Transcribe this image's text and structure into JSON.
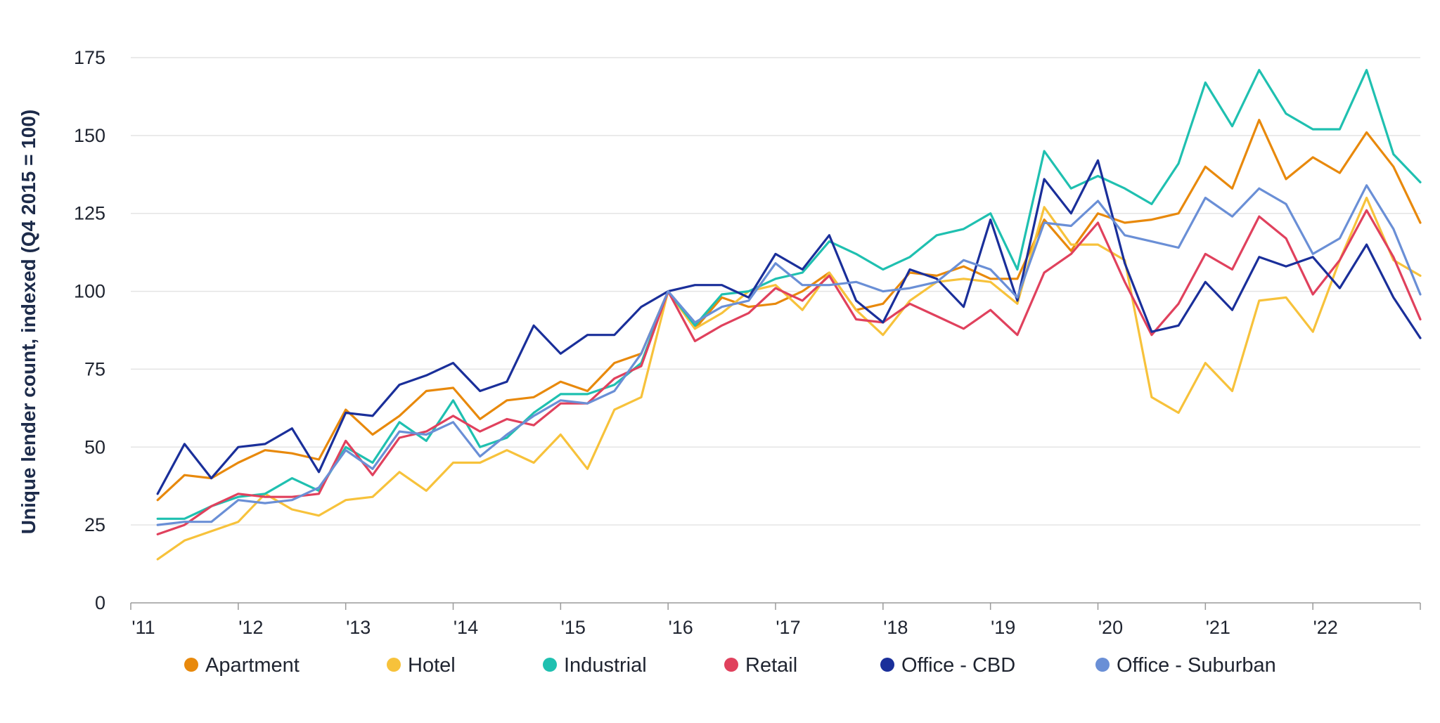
{
  "chart_data": {
    "type": "line",
    "title": "",
    "xlabel": "",
    "ylabel": "Unique lender count, indexed (Q4 2015 = 100)",
    "ylim": [
      0,
      175
    ],
    "yticks": [
      0,
      25,
      50,
      75,
      100,
      125,
      150,
      175
    ],
    "x_tick_labels": [
      "'11",
      "'12",
      "'13",
      "'14",
      "'15",
      "'16",
      "'17",
      "'18",
      "'19",
      "'20",
      "'21",
      "'22"
    ],
    "x_period_start": "Q1 2011",
    "x_period_end": "Q4 2022",
    "x": [
      "Q1 2011",
      "Q2 2011",
      "Q3 2011",
      "Q4 2011",
      "Q1 2012",
      "Q2 2012",
      "Q3 2012",
      "Q4 2012",
      "Q1 2013",
      "Q2 2013",
      "Q3 2013",
      "Q4 2013",
      "Q1 2014",
      "Q2 2014",
      "Q3 2014",
      "Q4 2014",
      "Q1 2015",
      "Q2 2015",
      "Q3 2015",
      "Q4 2015",
      "Q1 2016",
      "Q2 2016",
      "Q3 2016",
      "Q4 2016",
      "Q1 2017",
      "Q2 2017",
      "Q3 2017",
      "Q4 2017",
      "Q1 2018",
      "Q2 2018",
      "Q3 2018",
      "Q4 2018",
      "Q1 2019",
      "Q2 2019",
      "Q3 2019",
      "Q4 2019",
      "Q1 2020",
      "Q2 2020",
      "Q3 2020",
      "Q4 2020",
      "Q1 2021",
      "Q2 2021",
      "Q3 2021",
      "Q4 2021",
      "Q1 2022",
      "Q2 2022",
      "Q3 2022",
      "Q4 2022"
    ],
    "grid": true,
    "legend_position": "bottom",
    "series": [
      {
        "name": "Apartment",
        "color": "#e8890c",
        "values": [
          33,
          41,
          40,
          45,
          49,
          48,
          46,
          62,
          54,
          60,
          68,
          69,
          59,
          65,
          66,
          71,
          68,
          77,
          80,
          100,
          88,
          98,
          95,
          96,
          100,
          106,
          94,
          96,
          106,
          105,
          108,
          104,
          104,
          123,
          113,
          125,
          122,
          123,
          125,
          140,
          133,
          155,
          136,
          143,
          138,
          151,
          140,
          122
        ]
      },
      {
        "name": "Hotel",
        "color": "#f7c23b",
        "values": [
          14,
          20,
          23,
          26,
          35,
          30,
          28,
          33,
          34,
          42,
          36,
          45,
          45,
          49,
          45,
          54,
          43,
          62,
          66,
          100,
          88,
          93,
          100,
          102,
          94,
          106,
          94,
          86,
          97,
          103,
          104,
          103,
          96,
          127,
          115,
          115,
          110,
          66,
          61,
          77,
          68,
          97,
          98,
          87,
          110,
          130,
          110,
          105
        ]
      },
      {
        "name": "Industrial",
        "color": "#1fc0b0",
        "values": [
          27,
          27,
          31,
          34,
          35,
          40,
          36,
          50,
          45,
          58,
          52,
          65,
          50,
          53,
          61,
          67,
          67,
          70,
          77,
          100,
          89,
          99,
          100,
          104,
          106,
          116,
          112,
          107,
          111,
          118,
          120,
          125,
          107,
          145,
          133,
          137,
          133,
          128,
          141,
          167,
          153,
          171,
          157,
          152,
          152,
          171,
          144,
          135
        ]
      },
      {
        "name": "Retail",
        "color": "#e0415d",
        "values": [
          22,
          25,
          31,
          35,
          34,
          34,
          35,
          52,
          41,
          53,
          55,
          60,
          55,
          59,
          57,
          64,
          64,
          72,
          76,
          100,
          84,
          89,
          93,
          101,
          97,
          105,
          91,
          90,
          96,
          92,
          88,
          94,
          86,
          106,
          112,
          122,
          103,
          86,
          96,
          112,
          107,
          124,
          117,
          99,
          110,
          126,
          111,
          91
        ]
      },
      {
        "name": "Office - CBD",
        "color": "#1a2f9a",
        "values": [
          35,
          51,
          40,
          50,
          51,
          56,
          42,
          61,
          60,
          70,
          73,
          77,
          68,
          71,
          89,
          80,
          86,
          86,
          95,
          100,
          102,
          102,
          98,
          112,
          107,
          118,
          97,
          90,
          107,
          104,
          95,
          123,
          97,
          136,
          125,
          142,
          109,
          87,
          89,
          103,
          94,
          111,
          108,
          111,
          101,
          115,
          98,
          85
        ]
      },
      {
        "name": "Office - Suburban",
        "color": "#6a8fd6",
        "values": [
          25,
          26,
          26,
          33,
          32,
          33,
          37,
          49,
          43,
          55,
          54,
          58,
          47,
          54,
          60,
          65,
          64,
          68,
          80,
          100,
          90,
          95,
          97,
          109,
          102,
          102,
          103,
          100,
          101,
          103,
          110,
          107,
          98,
          122,
          121,
          129,
          118,
          116,
          114,
          130,
          124,
          133,
          128,
          112,
          117,
          134,
          120,
          99
        ]
      }
    ]
  }
}
